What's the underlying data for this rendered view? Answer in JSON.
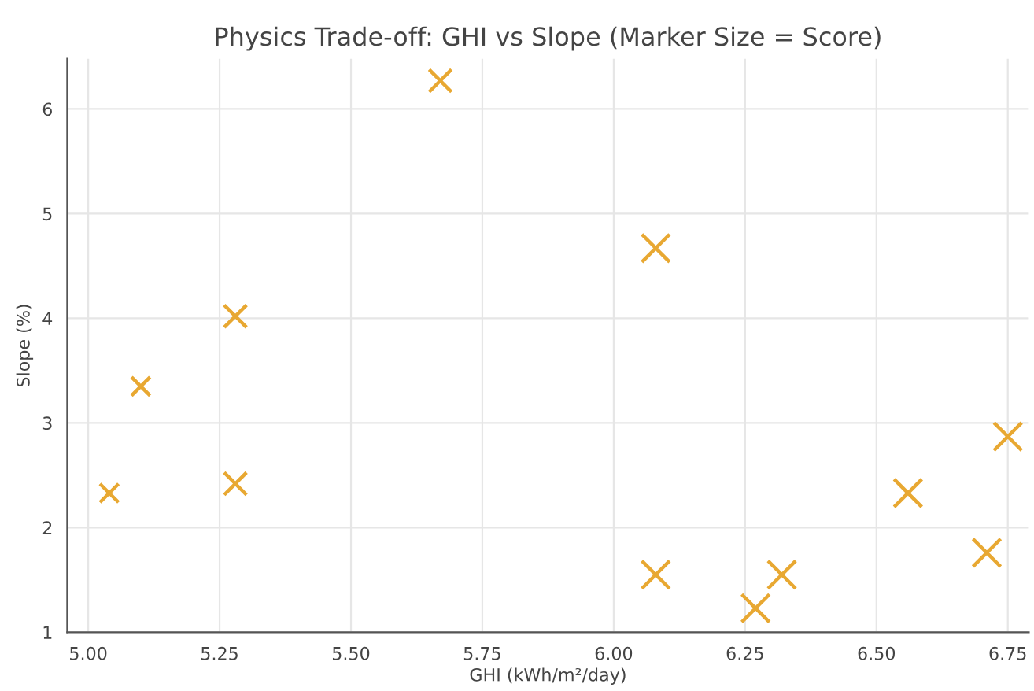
{
  "chart_data": {
    "type": "bubble",
    "title": "Physics Trade-off: GHI vs Slope (Marker Size = Score)",
    "xlabel": "GHI (kWh/m²/day)",
    "ylabel": "Slope (%)",
    "x": [
      5.04,
      5.1,
      5.28,
      5.28,
      5.67,
      6.08,
      6.08,
      6.27,
      6.32,
      6.56,
      6.71,
      6.75
    ],
    "values": [
      2.33,
      3.35,
      4.02,
      2.42,
      6.27,
      4.67,
      1.55,
      1.23,
      1.55,
      2.33,
      1.76,
      2.87
    ],
    "sizes": [
      0.45,
      0.45,
      0.65,
      0.65,
      0.65,
      1,
      1,
      1,
      1,
      1,
      1,
      1
    ],
    "color": "#e8a832",
    "marker": "cross",
    "xlim": [
      4.96,
      6.79
    ],
    "ylim": [
      1,
      6.48
    ],
    "xticks": [
      {
        "value": 5.0,
        "label": "5.00"
      },
      {
        "value": 5.25,
        "label": "5.25"
      },
      {
        "value": 5.5,
        "label": "5.50"
      },
      {
        "value": 5.75,
        "label": "5.75"
      },
      {
        "value": 6.0,
        "label": "6.00"
      },
      {
        "value": 6.25,
        "label": "6.25"
      },
      {
        "value": 6.5,
        "label": "6.50"
      },
      {
        "value": 6.75,
        "label": "6.75"
      }
    ],
    "yticks": [
      1,
      2,
      3,
      4,
      5,
      6
    ],
    "grid": true
  }
}
